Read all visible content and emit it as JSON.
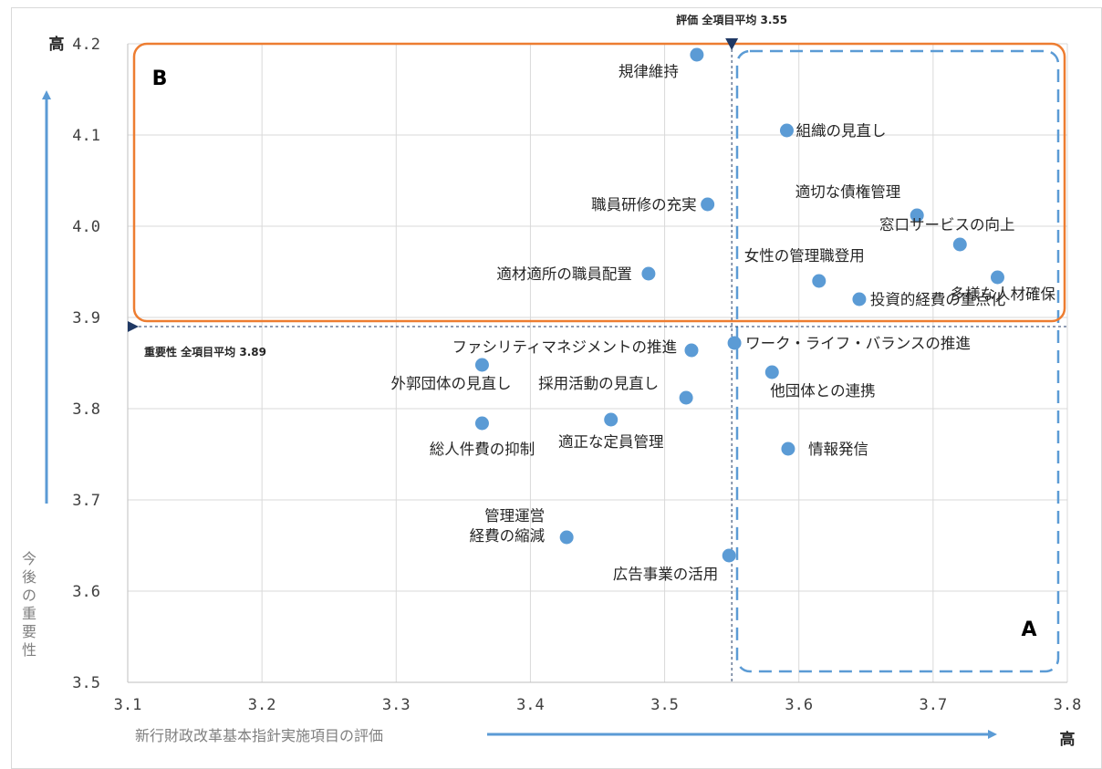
{
  "chart_data": {
    "type": "scatter",
    "xlabel": "新行財政改革基本指針実施項目の評価",
    "ylabel": "今後の重要性",
    "xlim": [
      3.1,
      3.8
    ],
    "ylim": [
      3.5,
      4.2
    ],
    "x_ticks": [
      "3.1",
      "3.2",
      "3.3",
      "3.4",
      "3.5",
      "3.6",
      "3.7",
      "3.8"
    ],
    "y_ticks": [
      "3.5",
      "3.6",
      "3.7",
      "3.8",
      "3.9",
      "4.0",
      "4.1",
      "4.2"
    ],
    "x_high_label": "高",
    "y_high_label": "高",
    "grid": true,
    "marker_color": "#5b9bd5",
    "averages": {
      "x": 3.55,
      "x_label": "評価 全項目平均 3.55",
      "y": 3.89,
      "y_label": "重要性 全項目平均 3.89"
    },
    "regions": [
      {
        "name": "A",
        "color": "#5b9bd5",
        "style": "dashed"
      },
      {
        "name": "B",
        "color": "#ed7d31",
        "style": "solid"
      }
    ],
    "points": [
      {
        "label": "規律維持",
        "x": 3.524,
        "y": 4.188
      },
      {
        "label": "組織の見直し",
        "x": 3.591,
        "y": 4.105
      },
      {
        "label": "職員研修の充実",
        "x": 3.532,
        "y": 4.024
      },
      {
        "label": "適切な債権管理",
        "x": 3.688,
        "y": 4.012
      },
      {
        "label": "窓口サービスの向上",
        "x": 3.72,
        "y": 3.98
      },
      {
        "label": "適材適所の職員配置",
        "x": 3.488,
        "y": 3.948
      },
      {
        "label": "女性の管理職登用",
        "x": 3.615,
        "y": 3.94
      },
      {
        "label": "多様な人材確保",
        "x": 3.748,
        "y": 3.944
      },
      {
        "label": "投資的経費の重点化",
        "x": 3.645,
        "y": 3.92
      },
      {
        "label": "ファシリティマネジメントの推進",
        "x": 3.52,
        "y": 3.864
      },
      {
        "label": "ワーク・ライフ・バランスの推進",
        "x": 3.552,
        "y": 3.872
      },
      {
        "label": "外郭団体の見直し",
        "x": 3.364,
        "y": 3.848
      },
      {
        "label": "他団体との連携",
        "x": 3.58,
        "y": 3.84
      },
      {
        "label": "採用活動の見直し",
        "x": 3.516,
        "y": 3.812
      },
      {
        "label": "総人件費の抑制",
        "x": 3.364,
        "y": 3.784
      },
      {
        "label": "適正な定員管理",
        "x": 3.46,
        "y": 3.788
      },
      {
        "label": "情報発信",
        "x": 3.592,
        "y": 3.756
      },
      {
        "label": "管理運営\n経費の縮減",
        "x": 3.427,
        "y": 3.659
      },
      {
        "label": "広告事業の活用",
        "x": 3.548,
        "y": 3.639
      }
    ]
  }
}
